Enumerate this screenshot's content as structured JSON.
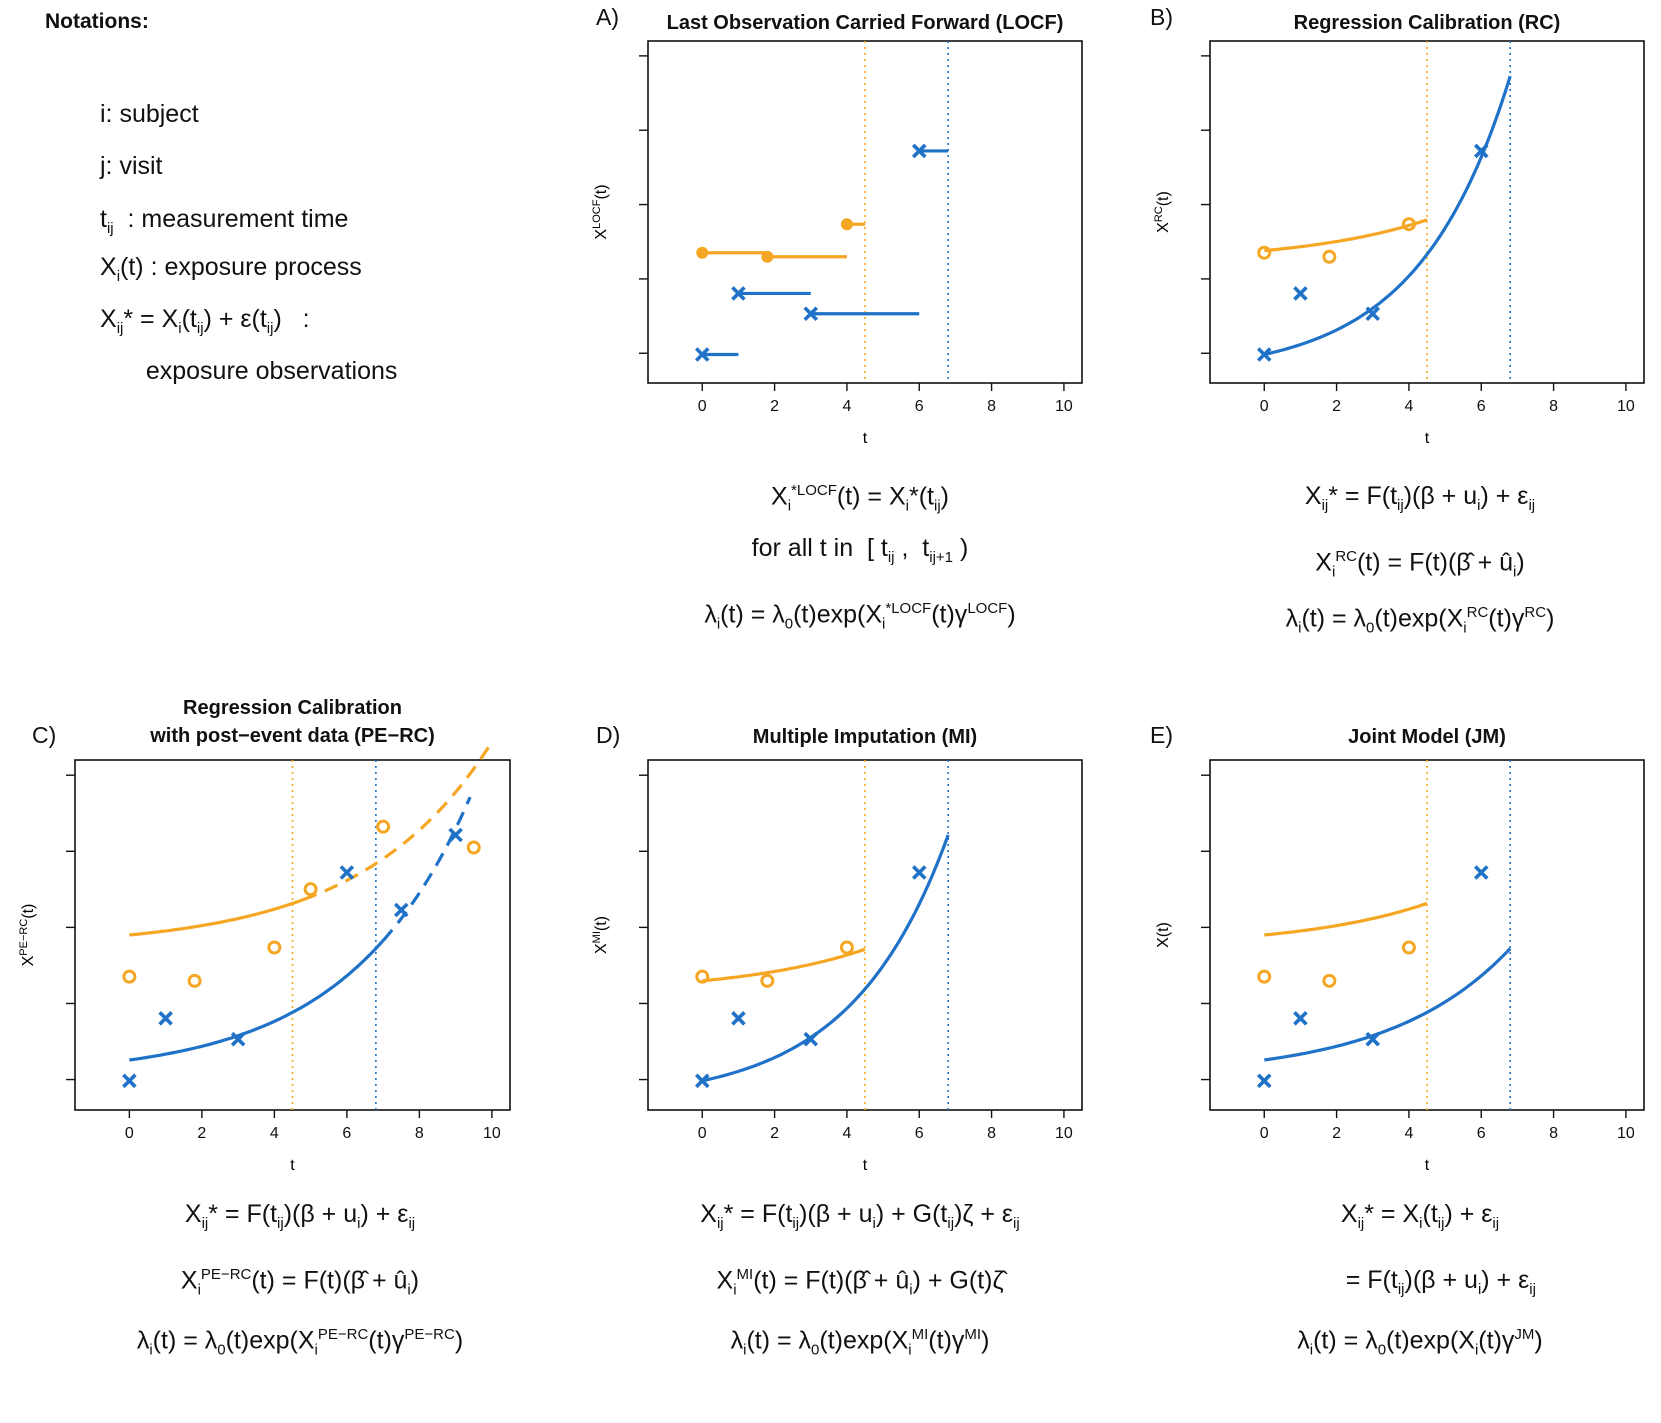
{
  "notations": {
    "title": "Notations:",
    "lines": [
      "i: subject",
      "j: visit",
      "t<sub>ij</sub> &nbsp;: measurement time",
      "X<sub>i</sub>(t) : exposure process",
      "X<sub>ij</sub>* = X<sub>i</sub>(t<sub>ij</sub>) + ε(t<sub>ij</sub>) &nbsp; :",
      "&nbsp;&nbsp;&nbsp;exposure observations"
    ]
  },
  "colors": {
    "orange": "#F5A623",
    "blue": "#1F72C7",
    "axis": "#111111"
  },
  "panels": [
    {
      "id": "A",
      "letter": "A)",
      "title": "Last Observation Carried Forward (LOCF)",
      "ylabel_html": "X<tspan baseline-shift='super' font-size='11'>LOCF</tspan>(t)",
      "xlabel": "t",
      "formulas": [
        "X<sub>i</sub><sup>*LOCF</sup>(t) = X<sub>i</sub>*(t<sub>ij</sub>)",
        "for all t in &nbsp;[ t<sub>ij</sub> , &nbsp;t<sub>ij+1</sub> )",
        "λ<sub>i</sub>(t) = λ<sub>0</sub>(t)exp(X<sub>i</sub><sup>*LOCF</sup>(t)γ<sup>LOCF</sup>)"
      ]
    },
    {
      "id": "B",
      "letter": "B)",
      "title": "Regression Calibration (RC)",
      "ylabel_html": "X<tspan baseline-shift='super' font-size='11'>RC</tspan>(t)",
      "xlabel": "t",
      "formulas": [
        "X<sub>ij</sub>* = F(t<sub>ij</sub>)(β + u<sub>i</sub>) + ε<sub>ij</sub>",
        "X<sub>i</sub><sup>RC</sup>(t) = F(t)(β̂ + û<sub>i</sub>)",
        "λ<sub>i</sub>(t) = λ<sub>0</sub>(t)exp(X<sub>i</sub><sup>RC</sup>(t)γ<sup>RC</sup>)"
      ]
    },
    {
      "id": "C",
      "letter": "C)",
      "title": "Regression Calibration",
      "title2": "with post−event data (PE−RC)",
      "ylabel_html": "X<tspan baseline-shift='super' font-size='11'>PE−RC</tspan>(t)",
      "xlabel": "t",
      "formulas": [
        "X<sub>ij</sub>* = F(t<sub>ij</sub>)(β + u<sub>i</sub>) + ε<sub>ij</sub>",
        "X<sub>i</sub><sup>PE−RC</sup>(t) = F(t)(β̂ + û<sub>i</sub>)",
        "λ<sub>i</sub>(t) = λ<sub>0</sub>(t)exp(X<sub>i</sub><sup>PE−RC</sup>(t)γ<sup>PE−RC</sup>)"
      ]
    },
    {
      "id": "D",
      "letter": "D)",
      "title": "Multiple Imputation (MI)",
      "ylabel_html": "X<tspan baseline-shift='super' font-size='11'>MI</tspan>(t)",
      "xlabel": "t",
      "formulas": [
        "X<sub>ij</sub>* = F(t<sub>ij</sub>)(β + u<sub>i</sub>) + G(t<sub>ij</sub>)ζ + ε<sub>ij</sub>",
        "X<sub>i</sub><sup>MI</sup>(t) = F(t)(β̂ + û<sub>i</sub>) + G(t)ζ̂",
        "λ<sub>i</sub>(t) = λ<sub>0</sub>(t)exp(X<sub>i</sub><sup>MI</sup>(t)γ<sup>MI</sup>)"
      ]
    },
    {
      "id": "E",
      "letter": "E)",
      "title": "Joint Model (JM)",
      "ylabel_html": "X(t)",
      "xlabel": "t",
      "formulas": [
        "X<sub>ij</sub>* = X<sub>i</sub>(t<sub>ij</sub>) + ε<sub>ij</sub>",
        "&nbsp;&nbsp;&nbsp;&nbsp;&nbsp;&nbsp;= F(t<sub>ij</sub>)(β + u<sub>i</sub>) + ε<sub>ij</sub>",
        "λ<sub>i</sub>(t) = λ<sub>0</sub>(t)exp(X<sub>i</sub>(t)γ<sup>JM</sup>)"
      ]
    }
  ],
  "chart_data": [
    {
      "panel": "A",
      "type": "scatter",
      "x_ticks": [
        0,
        2,
        4,
        6,
        8,
        10
      ],
      "xlim": [
        -1.5,
        10.5
      ],
      "ylim": [
        0.3,
        8.7
      ],
      "vlines": [
        {
          "x": 4.5,
          "color": "orange"
        },
        {
          "x": 6.8,
          "color": "blue"
        }
      ],
      "series": [
        {
          "color": "orange",
          "marker": "dot",
          "points": [
            [
              0,
              3.5
            ],
            [
              1.8,
              3.4
            ],
            [
              4,
              4.2
            ]
          ],
          "steps": [
            [
              [
                0,
                3.5
              ],
              [
                1.8,
                3.5
              ]
            ],
            [
              [
                1.8,
                3.4
              ],
              [
                4,
                3.4
              ]
            ],
            [
              [
                4,
                4.2
              ],
              [
                4.5,
                4.2
              ]
            ]
          ]
        },
        {
          "color": "blue",
          "marker": "x",
          "points": [
            [
              0,
              1
            ],
            [
              1,
              2.5
            ],
            [
              3,
              2
            ],
            [
              6,
              6
            ]
          ],
          "steps": [
            [
              [
                0,
                1
              ],
              [
                1,
                1
              ]
            ],
            [
              [
                1,
                2.5
              ],
              [
                3,
                2.5
              ]
            ],
            [
              [
                3,
                2
              ],
              [
                6,
                2
              ]
            ],
            [
              [
                6,
                6
              ],
              [
                6.8,
                6
              ]
            ]
          ]
        }
      ]
    },
    {
      "panel": "B",
      "type": "scatter",
      "x_ticks": [
        0,
        2,
        4,
        6,
        8,
        10
      ],
      "xlim": [
        -1.5,
        10.5
      ],
      "ylim": [
        0.3,
        8.7
      ],
      "vlines": [
        {
          "x": 4.5,
          "color": "orange"
        },
        {
          "x": 6.8,
          "color": "blue"
        }
      ],
      "series": [
        {
          "color": "orange",
          "marker": "ring",
          "points": [
            [
              0,
              3.5
            ],
            [
              1.8,
              3.4
            ],
            [
              4,
              4.2
            ]
          ],
          "curve": {
            "a": 3.25,
            "b": 0.3,
            "k": 0.28,
            "t0": 0,
            "t1": 4.5
          }
        },
        {
          "color": "blue",
          "marker": "x",
          "points": [
            [
              0,
              1
            ],
            [
              1,
              2.5
            ],
            [
              3,
              2
            ],
            [
              6,
              6
            ]
          ],
          "curve": {
            "a": 0.5,
            "b": 0.5,
            "k": 0.395,
            "t0": 0,
            "t1": 6.8
          }
        }
      ]
    },
    {
      "panel": "C",
      "type": "scatter",
      "x_ticks": [
        0,
        2,
        4,
        6,
        8,
        10
      ],
      "xlim": [
        -1.5,
        10.5
      ],
      "ylim": [
        0.3,
        8.7
      ],
      "vlines": [
        {
          "x": 4.5,
          "color": "orange"
        },
        {
          "x": 6.8,
          "color": "blue"
        }
      ],
      "series": [
        {
          "color": "orange",
          "marker": "ring",
          "points": [
            [
              0,
              3.5
            ],
            [
              1.8,
              3.4
            ],
            [
              4,
              4.2
            ],
            [
              5,
              5.6
            ],
            [
              7,
              7.1
            ],
            [
              9.5,
              6.6
            ]
          ],
          "curve": {
            "a": 4.2,
            "b": 0.3,
            "k": 0.28,
            "t0": 0,
            "t1": 4.8,
            "t2": 10
          }
        },
        {
          "color": "blue",
          "marker": "x",
          "points": [
            [
              0,
              1
            ],
            [
              1,
              2.5
            ],
            [
              3,
              2
            ],
            [
              6,
              6
            ],
            [
              7.5,
              5.1
            ],
            [
              9,
              6.9
            ]
          ],
          "curve": {
            "a": 1.1,
            "b": 0.4,
            "k": 0.3,
            "t0": 0,
            "t1": 7,
            "t2": 9.4
          }
        }
      ]
    },
    {
      "panel": "D",
      "type": "scatter",
      "x_ticks": [
        0,
        2,
        4,
        6,
        8,
        10
      ],
      "xlim": [
        -1.5,
        10.5
      ],
      "ylim": [
        0.3,
        8.7
      ],
      "vlines": [
        {
          "x": 4.5,
          "color": "orange"
        },
        {
          "x": 6.8,
          "color": "blue"
        }
      ],
      "series": [
        {
          "color": "orange",
          "marker": "ring",
          "points": [
            [
              0,
              3.5
            ],
            [
              1.8,
              3.4
            ],
            [
              4,
              4.2
            ]
          ],
          "curve": {
            "a": 3.1,
            "b": 0.3,
            "k": 0.28,
            "t0": 0,
            "t1": 4.5
          }
        },
        {
          "color": "blue",
          "marker": "x",
          "points": [
            [
              0,
              1
            ],
            [
              1,
              2.5
            ],
            [
              3,
              2
            ],
            [
              6,
              6
            ]
          ],
          "curve": {
            "a": 0.5,
            "b": 0.5,
            "k": 0.375,
            "t0": 0,
            "t1": 6.8
          }
        }
      ]
    },
    {
      "panel": "E",
      "type": "scatter",
      "x_ticks": [
        0,
        2,
        4,
        6,
        8,
        10
      ],
      "xlim": [
        -1.5,
        10.5
      ],
      "ylim": [
        0.3,
        8.7
      ],
      "vlines": [
        {
          "x": 4.5,
          "color": "orange"
        },
        {
          "x": 6.8,
          "color": "blue"
        }
      ],
      "series": [
        {
          "color": "orange",
          "marker": "ring",
          "points": [
            [
              0,
              3.5
            ],
            [
              1.8,
              3.4
            ],
            [
              4,
              4.2
            ]
          ],
          "curve": {
            "a": 4.2,
            "b": 0.3,
            "k": 0.28,
            "t0": 0,
            "t1": 4.5
          }
        },
        {
          "color": "blue",
          "marker": "x",
          "points": [
            [
              0,
              1
            ],
            [
              1,
              2.5
            ],
            [
              3,
              2
            ],
            [
              6,
              6
            ]
          ],
          "curve": {
            "a": 1.1,
            "b": 0.4,
            "k": 0.3,
            "t0": 0,
            "t1": 6.8
          }
        }
      ]
    }
  ]
}
